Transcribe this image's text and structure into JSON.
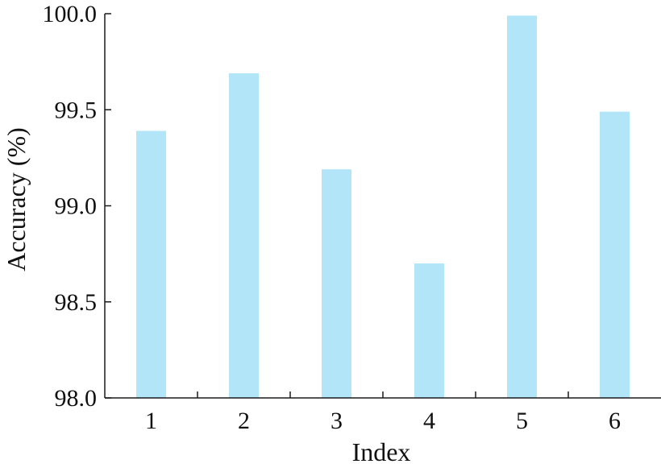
{
  "chart_data": {
    "type": "bar",
    "title": "",
    "xlabel": "Index",
    "ylabel": "Accuracy (%)",
    "categories": [
      "1",
      "2",
      "3",
      "4",
      "5",
      "6"
    ],
    "values": [
      99.39,
      99.69,
      99.19,
      98.7,
      99.99,
      99.49
    ],
    "ylim": [
      98.0,
      100.0
    ],
    "yticks": [
      "98.0",
      "98.5",
      "99.0",
      "99.5",
      "100.0"
    ],
    "bar_color": "#b3e5f9",
    "grid": false,
    "legend": "none"
  }
}
